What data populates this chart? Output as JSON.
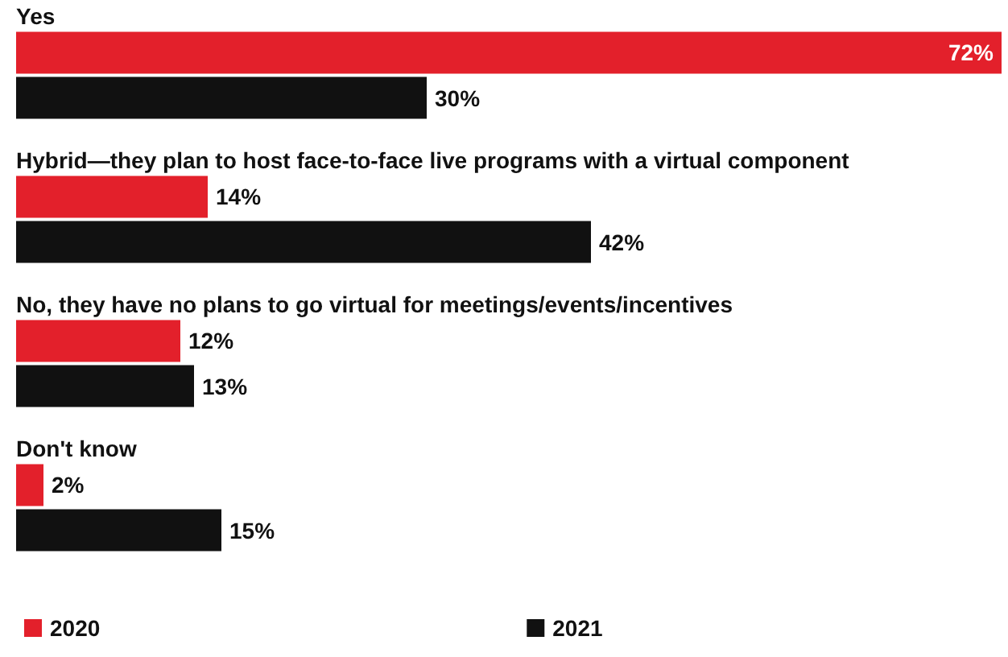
{
  "chart_data": {
    "type": "bar",
    "orientation": "horizontal",
    "categories": [
      "Yes",
      "Hybrid—they plan to host face-to-face live programs with a virtual component",
      "No, they have no plans to go virtual for meetings/events/incentives",
      "Don't know"
    ],
    "series": [
      {
        "name": "2020",
        "color": "#e3202b",
        "values": [
          72,
          14,
          12,
          2
        ],
        "value_labels": [
          "72%",
          "14%",
          "12%",
          "2%"
        ]
      },
      {
        "name": "2021",
        "color": "#111111",
        "values": [
          30,
          42,
          13,
          15
        ],
        "value_labels": [
          "30%",
          "42%",
          "13%",
          "15%"
        ]
      }
    ],
    "xlim": [
      0,
      72
    ],
    "legend": "bottom",
    "grid": false
  }
}
